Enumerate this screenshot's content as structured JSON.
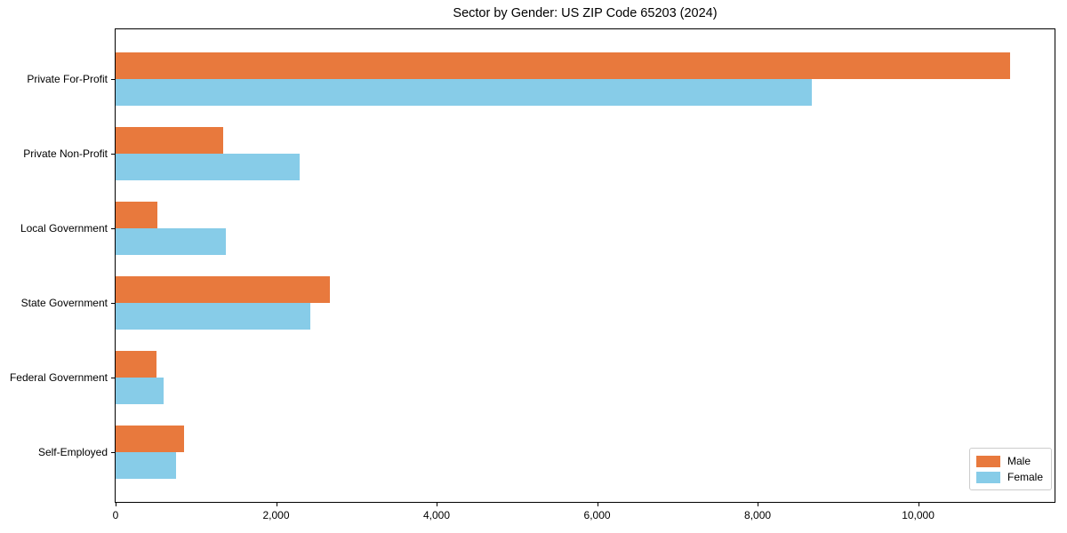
{
  "title": "Sector by Gender: US ZIP Code 65203 (2024)",
  "colors": {
    "male": "#E8793D",
    "female": "#87CCE8",
    "axis": "#000000",
    "legend_border": "#CCCCCC",
    "background": "#FFFFFF"
  },
  "legend": {
    "position": "lower right",
    "items": [
      {
        "label": "Male",
        "series": "Male"
      },
      {
        "label": "Female",
        "series": "Female"
      }
    ]
  },
  "chart_data": {
    "type": "bar",
    "orientation": "horizontal",
    "title": "Sector by Gender: US ZIP Code 65203 (2024)",
    "categories": [
      "Private For-Profit",
      "Private Non-Profit",
      "Local Government",
      "State Government",
      "Federal Government",
      "Self-Employed"
    ],
    "series": [
      {
        "name": "Male",
        "color": "#E8793D",
        "values": [
          11150,
          1340,
          520,
          2670,
          510,
          850
        ]
      },
      {
        "name": "Female",
        "color": "#87CCE8",
        "values": [
          8680,
          2290,
          1370,
          2430,
          600,
          750
        ]
      }
    ],
    "xlabel": "",
    "ylabel": "",
    "xlim": [
      0,
      11700
    ],
    "xticks": [
      0,
      2000,
      4000,
      6000,
      8000,
      10000
    ],
    "xtick_labels": [
      "0",
      "2,000",
      "4,000",
      "6,000",
      "8,000",
      "10,000"
    ],
    "grid": false,
    "legend_position": "lower right"
  }
}
